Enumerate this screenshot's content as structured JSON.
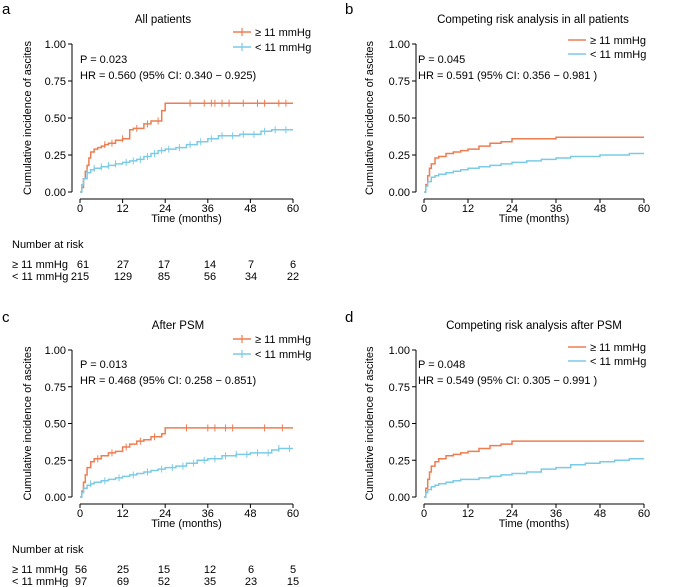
{
  "colors": {
    "high": "#EE7D52",
    "low": "#7CCBE6",
    "axis": "#000000"
  },
  "common": {
    "ylabel": "Cumulative incidence of ascites",
    "xlabel": "Time (months)",
    "x_ticks": [
      "0",
      "12",
      "24",
      "36",
      "48",
      "60"
    ],
    "y_ticks": [
      "0.00",
      "0.25",
      "0.50",
      "0.75",
      "1.00"
    ],
    "legend_high": "≥ 11 mmHg",
    "legend_low": "< 11 mmHg"
  },
  "risk_table_a": {
    "title": "Number at risk",
    "rows": [
      {
        "label": "≥ 11 mmHg",
        "values": [
          "61",
          "27",
          "17",
          "14",
          "7",
          "6"
        ]
      },
      {
        "label": "< 11 mmHg",
        "values": [
          "215",
          "129",
          "85",
          "56",
          "34",
          "22"
        ]
      }
    ]
  },
  "risk_table_c": {
    "title": "Number at risk",
    "rows": [
      {
        "label": "≥ 11 mmHg",
        "values": [
          "56",
          "25",
          "15",
          "12",
          "6",
          "5"
        ]
      },
      {
        "label": "< 11 mmHg",
        "values": [
          "97",
          "69",
          "52",
          "35",
          "23",
          "15"
        ]
      }
    ]
  },
  "chart_data": [
    {
      "panel": "a",
      "type": "line",
      "title": "All patients",
      "p_text": "P = 0.023",
      "hr_text": "HR = 0.560  (95% CI: 0.340 − 0.925)",
      "xlabel": "Time (months)",
      "ylabel": "Cumulative incidence of ascites",
      "xlim": [
        0,
        60
      ],
      "ylim": [
        0,
        1
      ],
      "censored": true,
      "series": [
        {
          "name": "≥ 11 mmHg",
          "x": [
            0,
            0.5,
            1,
            1.5,
            2,
            2.5,
            3,
            4,
            5,
            6,
            7,
            8,
            10,
            12,
            14,
            15,
            18,
            20,
            23,
            24,
            26,
            60
          ],
          "y": [
            0,
            0.03,
            0.09,
            0.14,
            0.18,
            0.23,
            0.27,
            0.29,
            0.3,
            0.31,
            0.32,
            0.33,
            0.35,
            0.36,
            0.42,
            0.43,
            0.46,
            0.48,
            0.55,
            0.6,
            0.6,
            0.6
          ],
          "censor_x": [
            7,
            9,
            12,
            16,
            19,
            22,
            31,
            35,
            37,
            38,
            40,
            42,
            46,
            50,
            52,
            56,
            58
          ]
        },
        {
          "name": "< 11 mmHg",
          "x": [
            0,
            0.5,
            1,
            2,
            3,
            4,
            6,
            8,
            10,
            12,
            14,
            16,
            18,
            20,
            22,
            24,
            27,
            30,
            33,
            36,
            39,
            42,
            45,
            48,
            51,
            54,
            57,
            60
          ],
          "y": [
            0,
            0.05,
            0.09,
            0.13,
            0.15,
            0.16,
            0.17,
            0.18,
            0.19,
            0.2,
            0.21,
            0.22,
            0.24,
            0.26,
            0.28,
            0.29,
            0.3,
            0.32,
            0.34,
            0.36,
            0.38,
            0.38,
            0.39,
            0.39,
            0.41,
            0.42,
            0.42,
            0.42
          ],
          "censor_x": [
            2,
            4,
            6,
            8,
            10,
            13,
            15,
            17,
            19,
            21,
            23,
            25,
            28,
            31,
            34,
            37,
            40,
            43,
            46,
            49,
            52,
            55,
            58
          ]
        }
      ]
    },
    {
      "panel": "b",
      "type": "line",
      "title": "Competing risk analysis in all patients",
      "p_text": "P = 0.045",
      "hr_text": "HR = 0.591  (95% CI: 0.356 − 0.981 )",
      "xlabel": "Time (months)",
      "ylabel": "Cumulative incidence of ascites",
      "xlim": [
        0,
        60
      ],
      "ylim": [
        0,
        1
      ],
      "censored": false,
      "series": [
        {
          "name": "≥ 11 mmHg",
          "x": [
            0,
            0.5,
            1,
            1.5,
            2,
            3,
            4,
            6,
            8,
            10,
            12,
            15,
            18,
            21,
            24,
            30,
            36,
            48,
            60
          ],
          "y": [
            0,
            0.05,
            0.11,
            0.16,
            0.19,
            0.23,
            0.24,
            0.26,
            0.27,
            0.28,
            0.29,
            0.31,
            0.33,
            0.34,
            0.36,
            0.36,
            0.37,
            0.37,
            0.37
          ]
        },
        {
          "name": "< 11 mmHg",
          "x": [
            0,
            0.5,
            1,
            2,
            3,
            4,
            6,
            8,
            10,
            12,
            15,
            18,
            21,
            24,
            28,
            32,
            36,
            40,
            44,
            48,
            52,
            56,
            60
          ],
          "y": [
            0,
            0.04,
            0.07,
            0.1,
            0.11,
            0.12,
            0.13,
            0.14,
            0.15,
            0.16,
            0.17,
            0.18,
            0.19,
            0.2,
            0.21,
            0.22,
            0.23,
            0.24,
            0.24,
            0.25,
            0.25,
            0.26,
            0.26
          ]
        }
      ]
    },
    {
      "panel": "c",
      "type": "line",
      "title": "After PSM",
      "p_text": "P = 0.013",
      "hr_text": "HR = 0.468  (95% CI: 0.258 − 0.851)",
      "xlabel": "Time (months)",
      "ylabel": "Cumulative incidence of ascites",
      "xlim": [
        0,
        60
      ],
      "ylim": [
        0,
        1
      ],
      "censored": true,
      "series": [
        {
          "name": "≥ 11 mmHg",
          "x": [
            0,
            0.5,
            1,
            1.5,
            2,
            3,
            4,
            6,
            8,
            10,
            12,
            14,
            16,
            18,
            20,
            23,
            24,
            26,
            60
          ],
          "y": [
            0,
            0.04,
            0.1,
            0.15,
            0.2,
            0.24,
            0.26,
            0.28,
            0.3,
            0.31,
            0.34,
            0.36,
            0.38,
            0.39,
            0.41,
            0.43,
            0.47,
            0.47,
            0.47
          ],
          "censor_x": [
            5,
            9,
            13,
            17,
            21,
            30,
            36,
            38,
            41,
            43,
            52,
            57
          ]
        },
        {
          "name": "< 11 mmHg",
          "x": [
            0,
            0.5,
            1,
            2,
            3,
            4,
            6,
            8,
            10,
            12,
            14,
            16,
            18,
            20,
            22,
            24,
            27,
            30,
            33,
            36,
            40,
            44,
            48,
            52,
            54,
            56,
            60
          ],
          "y": [
            0,
            0.03,
            0.06,
            0.08,
            0.09,
            0.1,
            0.11,
            0.12,
            0.13,
            0.14,
            0.15,
            0.16,
            0.17,
            0.18,
            0.19,
            0.2,
            0.21,
            0.23,
            0.25,
            0.26,
            0.28,
            0.29,
            0.3,
            0.3,
            0.32,
            0.33,
            0.33
          ],
          "censor_x": [
            3,
            7,
            11,
            15,
            19,
            23,
            26,
            29,
            32,
            35,
            38,
            41,
            44,
            47,
            50,
            53,
            56,
            59
          ]
        }
      ]
    },
    {
      "panel": "d",
      "type": "line",
      "title": "Competing risk analysis after PSM",
      "p_text": "P = 0.048",
      "hr_text": "HR = 0.549  (95% CI: 0.305 − 0.991 )",
      "xlabel": "Time (months)",
      "ylabel": "Cumulative incidence of ascites",
      "xlim": [
        0,
        60
      ],
      "ylim": [
        0,
        1
      ],
      "censored": false,
      "series": [
        {
          "name": "≥ 11 mmHg",
          "x": [
            0,
            0.5,
            1,
            1.5,
            2,
            3,
            4,
            6,
            8,
            10,
            12,
            15,
            18,
            21,
            24,
            30,
            36,
            48,
            60
          ],
          "y": [
            0,
            0.06,
            0.12,
            0.17,
            0.21,
            0.24,
            0.26,
            0.28,
            0.29,
            0.3,
            0.31,
            0.33,
            0.35,
            0.36,
            0.38,
            0.38,
            0.38,
            0.38,
            0.38
          ]
        },
        {
          "name": "< 11 mmHg",
          "x": [
            0,
            0.5,
            1,
            2,
            3,
            4,
            6,
            8,
            10,
            12,
            15,
            18,
            21,
            24,
            28,
            32,
            36,
            40,
            44,
            48,
            52,
            56,
            60
          ],
          "y": [
            0,
            0.03,
            0.05,
            0.07,
            0.08,
            0.09,
            0.1,
            0.11,
            0.12,
            0.12,
            0.13,
            0.14,
            0.15,
            0.16,
            0.17,
            0.19,
            0.2,
            0.22,
            0.23,
            0.24,
            0.25,
            0.26,
            0.26
          ]
        }
      ]
    }
  ]
}
